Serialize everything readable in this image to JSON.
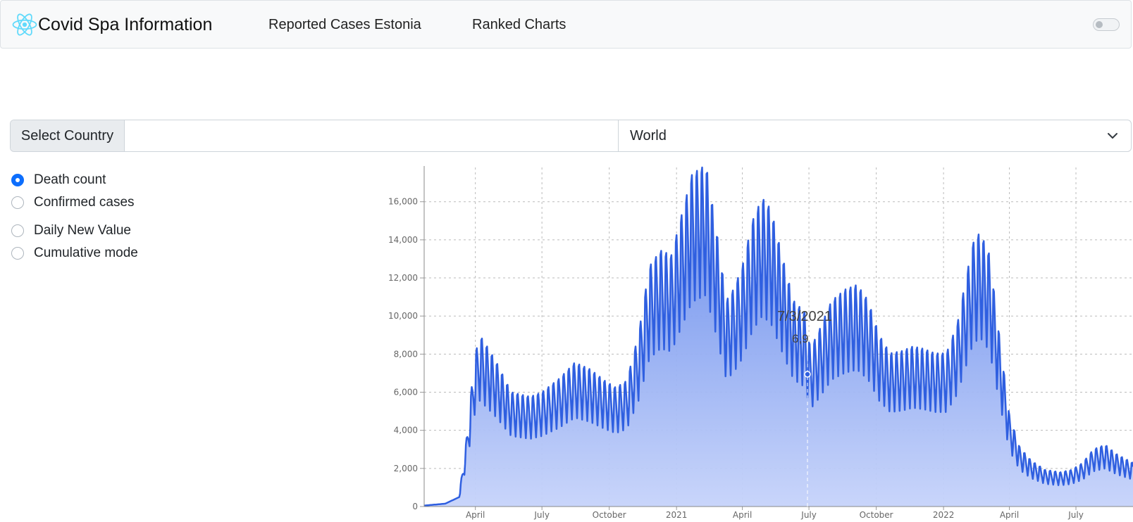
{
  "header": {
    "brand": "Covid Spa Information",
    "nav": [
      "Reported Cases Estonia",
      "Ranked Charts"
    ],
    "logo_icon": "react-logo-icon",
    "toggle_on": false
  },
  "selector": {
    "label": "Select Country",
    "input_value": "",
    "selected": "World",
    "chevron_icon": "chevron-down-icon"
  },
  "options": {
    "group1": [
      {
        "label": "Death count",
        "checked": true
      },
      {
        "label": "Confirmed cases",
        "checked": false
      }
    ],
    "group2": [
      {
        "label": "Daily New Value",
        "checked": false
      },
      {
        "label": "Cumulative mode",
        "checked": false
      }
    ]
  },
  "tooltip": {
    "date": "7/3/2021",
    "value": "6,9"
  },
  "colors": {
    "line": "#2f5fe0",
    "fill_top": "#5b82ea",
    "fill_bottom": "#c6d3fa",
    "accent": "#0d6efd"
  },
  "chart_data": {
    "type": "area",
    "ylim": [
      0,
      17800
    ],
    "y_ticks": [
      0,
      2000,
      4000,
      6000,
      8000,
      10000,
      12000,
      14000,
      16000
    ],
    "y_tick_labels": [
      "0",
      "2,000",
      "4,000",
      "6,000",
      "8,000",
      "10,000",
      "12,000",
      "14,000",
      "16,000"
    ],
    "x_tick_labels": [
      "April",
      "July",
      "October",
      "2021",
      "April",
      "July",
      "October",
      "2022",
      "April",
      "July"
    ],
    "x_tick_dates": [
      "2020-04-01",
      "2020-07-01",
      "2020-10-01",
      "2021-01-01",
      "2021-04-01",
      "2021-07-01",
      "2021-10-01",
      "2022-01-01",
      "2022-04-01",
      "2022-07-01"
    ],
    "x_range": [
      "2020-01-22",
      "2022-09-17"
    ],
    "grid": true,
    "weekly_oscillation": true,
    "series": [
      {
        "x": [
          "2020-01-22",
          "2020-02-20",
          "2020-03-10",
          "2020-03-20",
          "2020-03-31",
          "2020-04-07",
          "2020-04-17",
          "2020-04-30",
          "2020-05-20",
          "2020-06-15",
          "2020-07-01",
          "2020-07-25",
          "2020-08-15",
          "2020-09-05",
          "2020-09-25",
          "2020-10-10",
          "2020-10-25",
          "2020-11-10",
          "2020-11-25",
          "2020-12-10",
          "2020-12-25",
          "2021-01-10",
          "2021-01-22",
          "2021-02-10",
          "2021-02-25",
          "2021-03-10",
          "2021-03-20",
          "2021-04-01",
          "2021-04-15",
          "2021-04-28",
          "2021-05-10",
          "2021-05-25",
          "2021-06-10",
          "2021-06-25",
          "2021-07-03",
          "2021-07-15",
          "2021-08-01",
          "2021-08-20",
          "2021-09-05",
          "2021-09-20",
          "2021-10-05",
          "2021-10-20",
          "2021-11-05",
          "2021-11-20",
          "2021-12-05",
          "2021-12-20",
          "2022-01-05",
          "2022-01-20",
          "2022-02-01",
          "2022-02-10",
          "2022-02-20",
          "2022-03-05",
          "2022-03-20",
          "2022-04-01",
          "2022-04-15",
          "2022-05-01",
          "2022-05-20",
          "2022-06-10",
          "2022-06-25",
          "2022-07-10",
          "2022-07-25",
          "2022-08-10",
          "2022-08-25",
          "2022-09-17"
        ],
        "values": [
          50,
          150,
          500,
          3000,
          6500,
          7500,
          7000,
          6300,
          5000,
          4800,
          5000,
          5600,
          6300,
          6000,
          5500,
          5200,
          5500,
          7500,
          10500,
          11200,
          11000,
          13000,
          14500,
          15000,
          12000,
          9000,
          9500,
          10500,
          12500,
          13500,
          13000,
          11000,
          9000,
          8500,
          6900,
          7700,
          9000,
          9500,
          9700,
          9000,
          7500,
          6700,
          6800,
          7000,
          6900,
          6700,
          6700,
          8000,
          10000,
          11500,
          12000,
          11000,
          7000,
          4000,
          2600,
          2000,
          1600,
          1500,
          1600,
          1900,
          2500,
          2700,
          2300,
          1900
        ]
      }
    ]
  }
}
